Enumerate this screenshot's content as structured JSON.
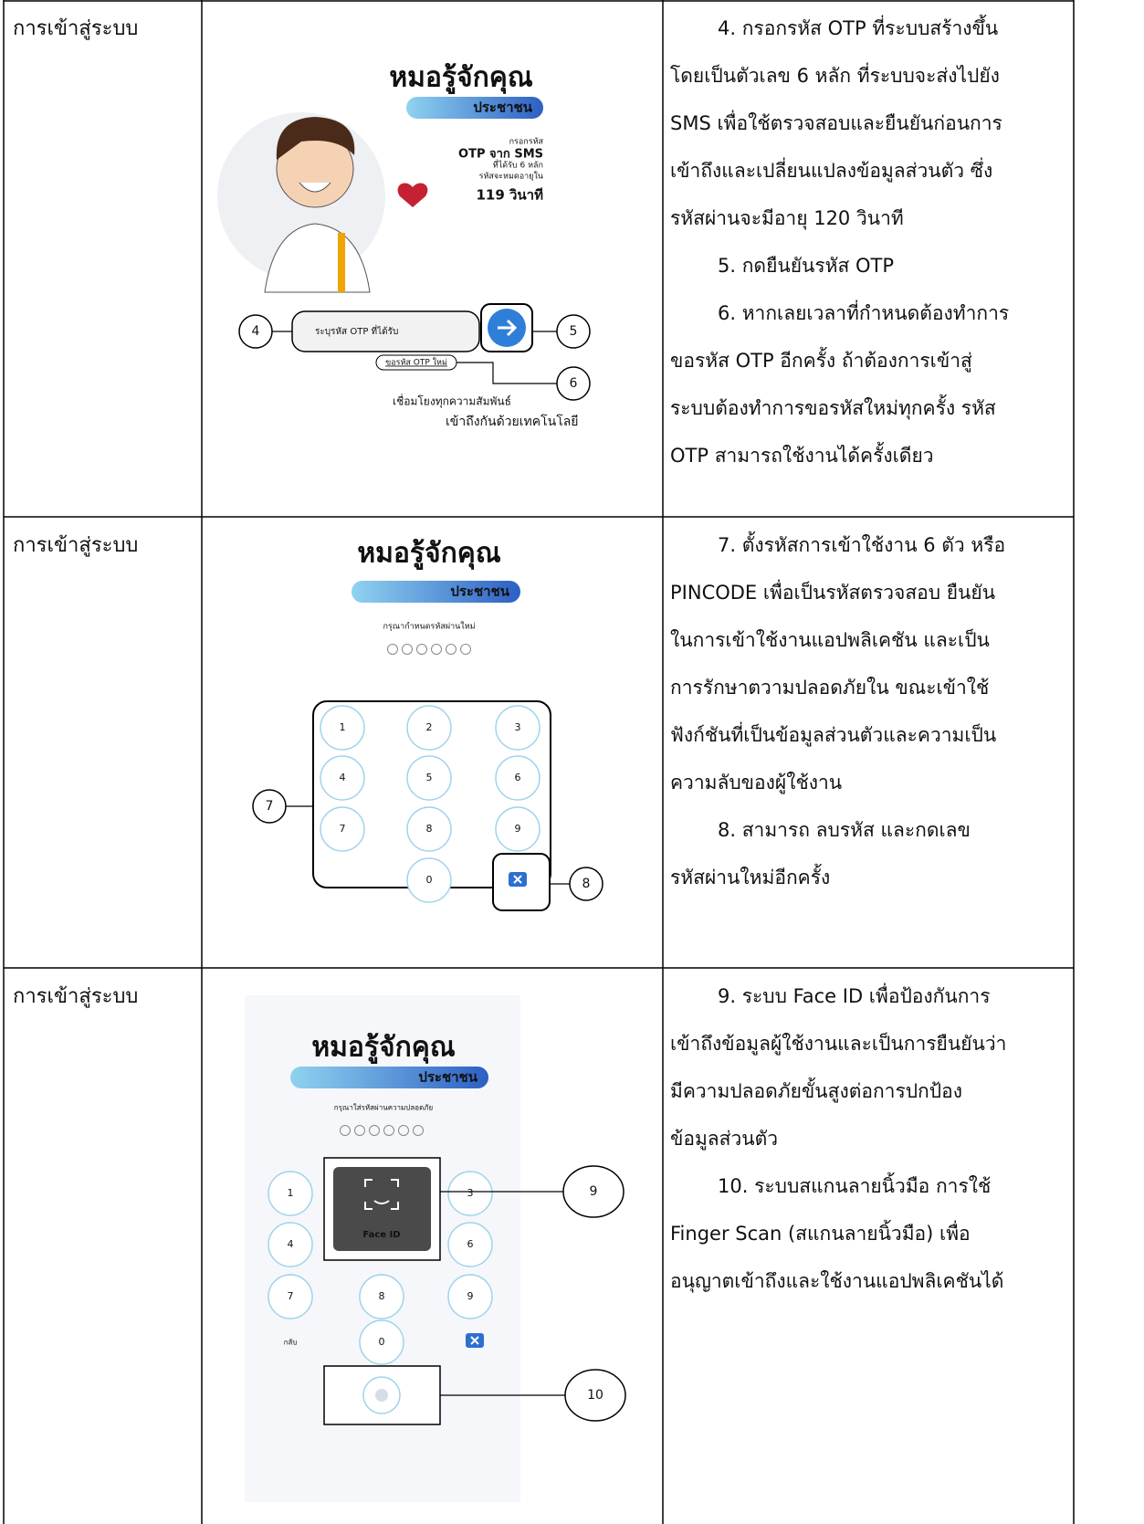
{
  "rows": [
    {
      "label": "การเข้าสู่ระบบ",
      "image": {
        "title": "หมอรู้จักคุณ",
        "subtitle": "ประชาชน",
        "otp_info": [
          "กรอกรหัส",
          "OTP จาก SMS",
          "ที่ได้รับ 6 หลัก",
          "รหัสจะหมดอายุใน",
          "119 วินาที"
        ],
        "input_placeholder": "ระบุรหัส OTP ที่ได้รับ",
        "resend": "ขอรหัส OTP ใหม่",
        "slogan": [
          "เชื่อมโยงทุกความสัมพันธ์",
          "เข้าถึงกันด้วยเทคโนโลยี"
        ],
        "callouts": [
          "4",
          "5",
          "6"
        ]
      },
      "description": [
        [
          "4. กรอกรหัส OTP ที่ระบบสร้างขึ้น",
          "โดยเป็นตัวเลข 6 หลัก ที่ระบบจะส่งไปยัง",
          "SMS เพื่อใช้ตรวจสอบและยืนยันก่อนการ",
          "เข้าถึงและเปลี่ยนแปลงข้อมูลส่วนตัว ซึ่ง",
          "รหัสผ่านจะมีอายุ 120 วินาที"
        ],
        [
          "5. กดยืนยันรหัส OTP"
        ],
        [
          "6. หากเลยเวลาที่กำหนดต้องทำการ",
          "ขอรหัส OTP อีกครั้ง ถ้าต้องการเข้าสู่",
          "ระบบต้องทำการขอรหัสใหม่ทุกครั้ง รหัส",
          "OTP สามารถใช้งานได้ครั้งเดียว"
        ]
      ]
    },
    {
      "label": "การเข้าสู่ระบบ",
      "image": {
        "title": "หมอรู้จักคุณ",
        "subtitle": "ประชาชน",
        "prompt": "กรุณากำหนดรหัสผ่านใหม่",
        "keys": [
          "1",
          "2",
          "3",
          "4",
          "5",
          "6",
          "7",
          "8",
          "9",
          "0"
        ],
        "callouts": [
          "7",
          "8"
        ]
      },
      "description": [
        [
          "7. ตั้งรหัสการเข้าใช้งาน 6 ตัว หรือ",
          "PINCODE เพื่อเป็นรหัสตรวจสอบ ยืนยัน",
          "ในการเข้าใช้งานแอปพลิเคชัน และเป็น",
          "การรักษาตวามปลอดภัยใน ขณะเข้าใช้",
          "ฟังก์ชันที่เป็นข้อมูลส่วนตัวและความเป็น",
          "ความลับของผู้ใช้งาน"
        ],
        [
          "8. สามารถ ลบรหัส และกดเลข",
          "รหัสผ่านใหม่อีกครั้ง"
        ]
      ]
    },
    {
      "label": "การเข้าสู่ระบบ",
      "image": {
        "title": "หมอรู้จักคุณ",
        "subtitle": "ประชาชน",
        "prompt": "กรุณาใส่รหัสผ่านความปลอดภัย",
        "keys": [
          "1",
          "3",
          "4",
          "6",
          "7",
          "8",
          "9",
          "0"
        ],
        "face_id": "Face ID",
        "back": "กลับ",
        "callouts": [
          "9",
          "10"
        ]
      },
      "description": [
        [
          "9. ระบบ Face ID เพื่อป้องกันการ",
          "เข้าถึงข้อมูลผู้ใช้งานและเป็นการยืนยันว่า",
          "มีความปลอดภัยขั้นสูงต่อการปกป้อง",
          "ข้อมูลส่วนตัว"
        ],
        [
          "10. ระบบสแกนลายนิ้วมือ การใช้",
          "Finger Scan (สแกนลายนิ้วมือ) เพื่อ",
          "อนุญาตเข้าถึงและใช้งานแอปพลิเคชันได้"
        ]
      ]
    }
  ]
}
